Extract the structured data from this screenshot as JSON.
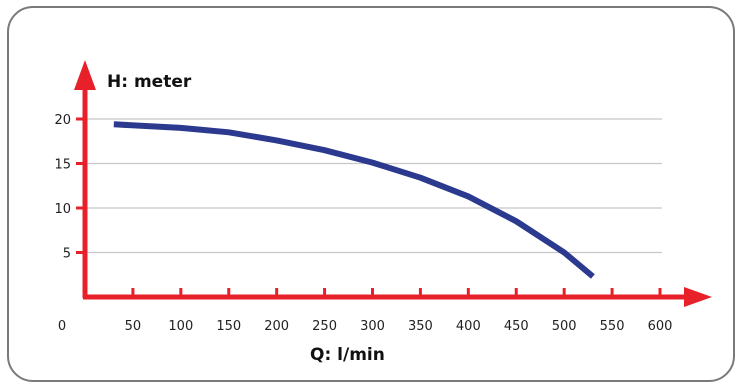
{
  "chart_data": {
    "type": "line",
    "ylabel": "H: meter",
    "xlabel": "Q: l/min",
    "xlim": [
      0,
      600
    ],
    "ylim": [
      0,
      20
    ],
    "x_ticks": [
      0,
      50,
      100,
      150,
      200,
      250,
      300,
      350,
      400,
      450,
      500,
      550,
      600
    ],
    "y_ticks": [
      5,
      10,
      15,
      20
    ],
    "grid": "horizontal",
    "series": [
      {
        "x": [
          30,
          100,
          150,
          200,
          250,
          300,
          350,
          400,
          450,
          500,
          530
        ],
        "values": [
          19.4,
          19.0,
          18.5,
          17.6,
          16.5,
          15.1,
          13.4,
          11.3,
          8.5,
          5.0,
          2.3
        ]
      }
    ],
    "colors": {
      "axis": "#e8202a",
      "curve": "#2b3a8e",
      "grid": "#c8c8c8"
    }
  }
}
